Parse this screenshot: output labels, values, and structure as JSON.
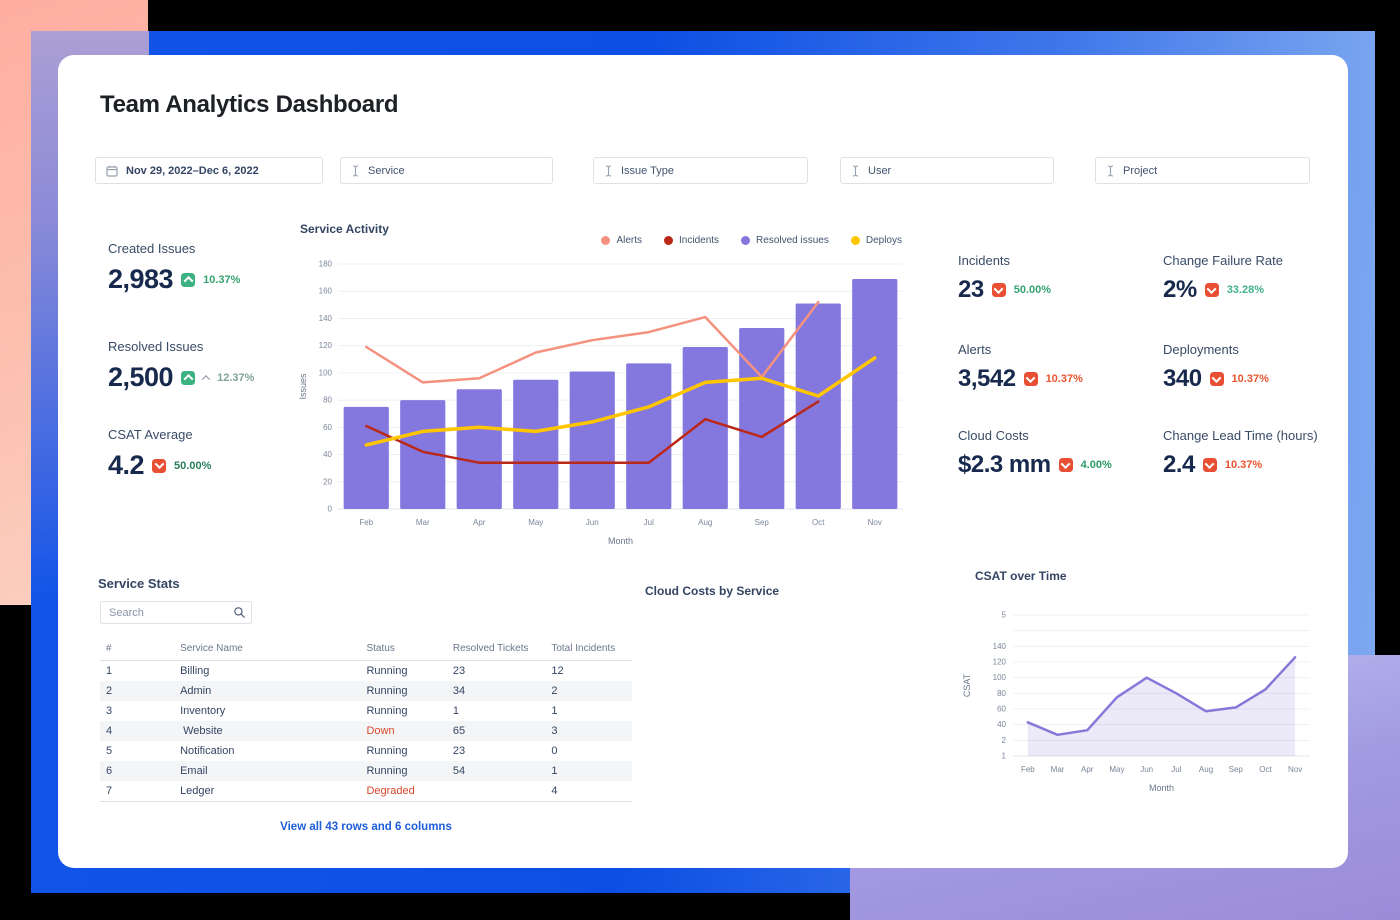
{
  "page": {
    "title": "Team Analytics Dashboard"
  },
  "colors": {
    "accent_blue": "#0d4fe4",
    "peach": "#ffaea0",
    "purple": "#9c8bd8",
    "green_badge": "#3cb181",
    "red_badge": "#e94f32",
    "link_blue": "#1d5ed9",
    "status_red": "#d9472b"
  },
  "icons": {
    "date_filter": "calendar-icon",
    "select_filter": "text-cursor-icon",
    "search": "search-icon",
    "kpi_up": "chevron-up-icon",
    "kpi_down": "chevron-down-icon"
  },
  "filters": {
    "date_range": {
      "label": "Nov 29, 2022–Dec 6, 2022"
    },
    "selects": [
      {
        "label": "Service"
      },
      {
        "label": "Issue Type"
      },
      {
        "label": "User"
      },
      {
        "label": "Project"
      }
    ]
  },
  "kpis_left": [
    {
      "label": "Created Issues",
      "value": "2,983",
      "delta": "10.37%",
      "direction": "up",
      "badge_color": "#3cb181",
      "delta_color": "#36a372",
      "muted_caret": false
    },
    {
      "label": "Resolved Issues",
      "value": "2,500",
      "delta": "12.37%",
      "direction": "up",
      "badge_color": "#3cb181",
      "delta_color": "#7fa393",
      "muted_caret": true
    },
    {
      "label": "CSAT Average",
      "value": "4.2",
      "delta": "50.00%",
      "direction": "down",
      "badge_color": "#e94f32",
      "delta_color": "#2a7e5c",
      "muted_caret": false
    }
  ],
  "kpis_right": [
    {
      "label": "Incidents",
      "value": "23",
      "delta": "50.00%",
      "direction": "down",
      "badge_color": "#e94f32",
      "delta_color": "#36a372"
    },
    {
      "label": "Change Failure Rate",
      "value": "2%",
      "delta": "33.28%",
      "direction": "down",
      "badge_color": "#e94f32",
      "delta_color": "#43b389"
    },
    {
      "label": "Alerts",
      "value": "3,542",
      "delta": "10.37%",
      "direction": "down",
      "badge_color": "#e94f32",
      "delta_color": "#e8552f"
    },
    {
      "label": "Deployments",
      "value": "340",
      "delta": "10.37%",
      "direction": "down",
      "badge_color": "#e94f32",
      "delta_color": "#e8552f"
    },
    {
      "label": "Cloud Costs",
      "value": "$2.3 mm",
      "delta": "4.00%",
      "direction": "down",
      "badge_color": "#e94f32",
      "delta_color": "#2a9a68"
    },
    {
      "label": "Change Lead Time (hours)",
      "value": "2.4",
      "delta": "10.37%",
      "direction": "down",
      "badge_color": "#e94f32",
      "delta_color": "#e8552f"
    }
  ],
  "service_stats": {
    "title": "Service Stats",
    "search_placeholder": "Search",
    "columns": [
      "#",
      "Service Name",
      "Status",
      "Resolved Tickets",
      "Total Incidents"
    ],
    "rows": [
      [
        "1",
        "Billing",
        "Running",
        "23",
        "12"
      ],
      [
        "2",
        "Admin",
        "Running",
        "34",
        "2"
      ],
      [
        "3",
        "Inventory",
        "Running",
        "1",
        "1"
      ],
      [
        "4",
        " Website",
        "Down",
        "65",
        "3"
      ],
      [
        "5",
        "Notification",
        "Running",
        "23",
        "0"
      ],
      [
        "6",
        "Email",
        "Running",
        "54",
        "1"
      ],
      [
        "7",
        "Ledger",
        "Degraded",
        "",
        "4"
      ]
    ],
    "footer_link": "View all 43 rows and 6 columns"
  },
  "cloud_costs_panel": {
    "title": "Cloud Costs by Service"
  },
  "chart_data": [
    {
      "type": "bar+line",
      "title": "Service Activity",
      "categories": [
        "Feb",
        "Mar",
        "Apr",
        "May",
        "Jun",
        "Jul",
        "Aug",
        "Sep",
        "Oct",
        "Nov"
      ],
      "xlabel": "Month",
      "ylabel": "Issues",
      "ylim": [
        0,
        180
      ],
      "ytick_step": 20,
      "grid": true,
      "legend_position": "top-right",
      "series": [
        {
          "name": "Alerts",
          "type": "line",
          "color": "#f5917f",
          "values": [
            119,
            93,
            96,
            115,
            124,
            130,
            141,
            97,
            152,
            null
          ]
        },
        {
          "name": "Incidents",
          "type": "line",
          "color": "#bb2817",
          "values": [
            61,
            42,
            34,
            34,
            34,
            34,
            66,
            53,
            79,
            null
          ]
        },
        {
          "name": "Resolved issues",
          "type": "bar",
          "color": "#8478de",
          "values": [
            75,
            80,
            88,
            95,
            101,
            107,
            119,
            133,
            151,
            169
          ]
        },
        {
          "name": "Deploys",
          "type": "line",
          "color": "#fec500",
          "values": [
            47,
            57,
            60,
            57,
            64,
            75,
            93,
            96,
            83,
            111
          ]
        }
      ]
    },
    {
      "type": "area",
      "title": "CSAT over Time",
      "categories": [
        "Feb",
        "Mar",
        "Apr",
        "May",
        "Jun",
        "Jul",
        "Aug",
        "Sep",
        "Oct",
        "Nov"
      ],
      "xlabel": "Month",
      "ylabel": "CSAT",
      "ylim": [
        0,
        180
      ],
      "ytick_labels_bottom_to_top": [
        "1",
        "2",
        "40",
        "60",
        "80",
        "100",
        "120",
        "140",
        "",
        "5"
      ],
      "grid": true,
      "series": [
        {
          "name": "CSAT",
          "color": "#8678d8",
          "fill": "rgba(134,120,216,0.16)",
          "values": [
            43,
            27,
            33,
            75,
            100,
            80,
            57,
            62,
            85,
            126
          ]
        }
      ]
    }
  ]
}
